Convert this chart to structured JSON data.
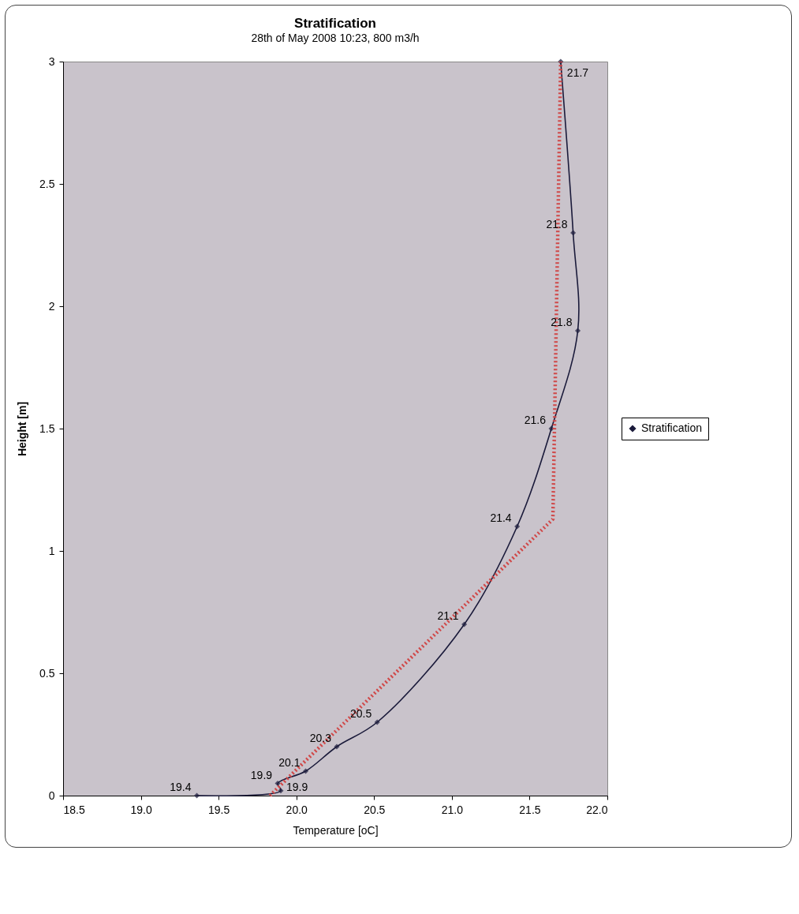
{
  "chart_data": {
    "type": "line",
    "title": "Stratification",
    "subtitle": "28th of May 2008 10:23, 800 m3/h",
    "xlabel": "Temperature [oC]",
    "ylabel": "Height [m]",
    "xlim": [
      18.5,
      22.0
    ],
    "xticks": [
      18.5,
      {
        "value": 19,
        "label": "19.0"
      },
      19.5,
      {
        "value": 20,
        "label": "20.0"
      },
      20.5,
      {
        "value": 21,
        "label": "21.0"
      },
      21.5,
      {
        "value": 22,
        "label": "22.0"
      }
    ],
    "ylim": [
      0,
      3
    ],
    "yticks": [
      0,
      0.5,
      1,
      1.5,
      2,
      2.5,
      3
    ],
    "grid": false,
    "legend": "right",
    "series": [
      {
        "name": "Stratification",
        "color": "#1a1a3a",
        "marker": "diamond",
        "line_style": "solid",
        "x": [
          19.36,
          19.9,
          19.88,
          20.06,
          20.26,
          20.52,
          21.08,
          21.42,
          21.64,
          21.81,
          21.78,
          21.7
        ],
        "values": [
          0,
          0.02,
          0.05,
          0.1,
          0.2,
          0.3,
          0.7,
          1.1,
          1.5,
          1.9,
          2.3,
          3.0
        ]
      },
      {
        "color": "#d04848",
        "marker": "none",
        "line_style": "dotted",
        "x": [
          19.83,
          21.65,
          21.7
        ],
        "values": [
          0,
          1.13,
          3.0
        ]
      }
    ],
    "annotations": [
      {
        "text": "19.4",
        "x": 19.36,
        "y": 0
      },
      {
        "text": "19.9",
        "x": 19.9,
        "y": 0.02
      },
      {
        "text": "19.9",
        "x": 19.88,
        "y": 0.05
      },
      {
        "text": "20.1",
        "x": 20.06,
        "y": 0.1
      },
      {
        "text": "20.3",
        "x": 20.26,
        "y": 0.2
      },
      {
        "text": "20.5",
        "x": 20.52,
        "y": 0.3
      },
      {
        "text": "21.1",
        "x": 21.08,
        "y": 0.7
      },
      {
        "text": "21.4",
        "x": 21.42,
        "y": 1.1
      },
      {
        "text": "21.6",
        "x": 21.64,
        "y": 1.5
      },
      {
        "text": "21.8",
        "x": 21.81,
        "y": 1.9
      },
      {
        "text": "21.8",
        "x": 21.78,
        "y": 2.3
      },
      {
        "text": "21.7",
        "x": 21.7,
        "y": 3.0
      }
    ]
  }
}
